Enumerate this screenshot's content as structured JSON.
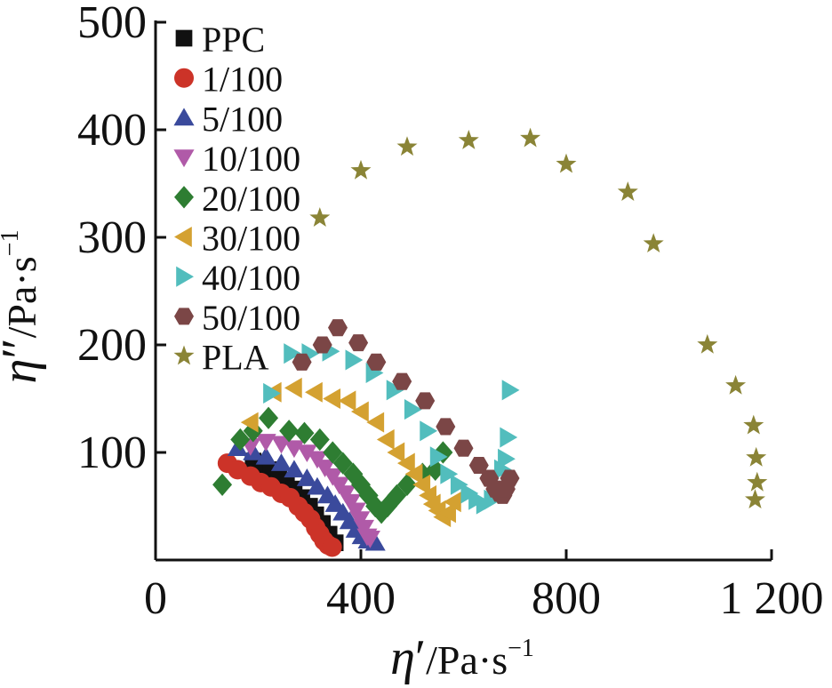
{
  "chart_data": {
    "type": "scatter",
    "xlabel": "η′/Pa·s⁻¹",
    "ylabel": "η″/Pa·s⁻¹",
    "xlabel_parts": {
      "sym": "η",
      "prime": "′",
      "unit": "/Pa·s",
      "exp": "−1"
    },
    "ylabel_parts": {
      "sym": "η",
      "prime": "″",
      "unit": "/Pa·s",
      "exp": "−1"
    },
    "xlim": [
      0,
      1200
    ],
    "ylim": [
      0,
      500
    ],
    "x_ticks": [
      0,
      400,
      800,
      1200
    ],
    "x_tick_labels": [
      "0",
      "400",
      "800",
      "1 200"
    ],
    "y_ticks": [
      100,
      200,
      300,
      400,
      500
    ],
    "y_tick_labels": [
      "100",
      "200",
      "300",
      "400",
      "500"
    ],
    "grid": false,
    "legend_position": "top-left",
    "series": [
      {
        "name": "PPC",
        "marker": "square",
        "color": "#111111",
        "points": [
          [
            190,
            92
          ],
          [
            210,
            88
          ],
          [
            225,
            84
          ],
          [
            240,
            78
          ],
          [
            255,
            72
          ],
          [
            270,
            66
          ],
          [
            285,
            58
          ],
          [
            300,
            50
          ],
          [
            312,
            42
          ],
          [
            325,
            34
          ],
          [
            338,
            24
          ],
          [
            350,
            16
          ]
        ]
      },
      {
        "name": "1/100",
        "marker": "circle",
        "color": "#cc3328",
        "points": [
          [
            140,
            90
          ],
          [
            160,
            84
          ],
          [
            185,
            78
          ],
          [
            205,
            72
          ],
          [
            225,
            68
          ],
          [
            245,
            62
          ],
          [
            262,
            58
          ],
          [
            278,
            50
          ],
          [
            290,
            44
          ],
          [
            302,
            38
          ],
          [
            312,
            30
          ],
          [
            320,
            24
          ],
          [
            328,
            18
          ],
          [
            336,
            14
          ],
          [
            344,
            12
          ]
        ]
      },
      {
        "name": "5/100",
        "marker": "triangle-up",
        "color": "#3a4a9c",
        "points": [
          [
            160,
            104
          ],
          [
            190,
            100
          ],
          [
            215,
            96
          ],
          [
            245,
            90
          ],
          [
            270,
            84
          ],
          [
            295,
            76
          ],
          [
            315,
            68
          ],
          [
            335,
            60
          ],
          [
            350,
            52
          ],
          [
            365,
            44
          ],
          [
            378,
            36
          ],
          [
            390,
            28
          ],
          [
            402,
            22
          ],
          [
            414,
            18
          ],
          [
            428,
            16
          ]
        ]
      },
      {
        "name": "10/100",
        "marker": "triangle-down",
        "color": "#b05aa8",
        "points": [
          [
            185,
            106
          ],
          [
            215,
            110
          ],
          [
            245,
            108
          ],
          [
            270,
            104
          ],
          [
            295,
            100
          ],
          [
            315,
            94
          ],
          [
            330,
            86
          ],
          [
            345,
            78
          ],
          [
            358,
            70
          ],
          [
            370,
            62
          ],
          [
            380,
            54
          ],
          [
            390,
            46
          ],
          [
            398,
            38
          ],
          [
            406,
            30
          ],
          [
            412,
            22
          ],
          [
            418,
            20
          ]
        ]
      },
      {
        "name": "20/100",
        "marker": "diamond",
        "color": "#2e7d32",
        "points": [
          [
            130,
            70
          ],
          [
            165,
            112
          ],
          [
            190,
            120
          ],
          [
            220,
            132
          ],
          [
            260,
            120
          ],
          [
            290,
            118
          ],
          [
            320,
            112
          ],
          [
            345,
            100
          ],
          [
            365,
            90
          ],
          [
            385,
            80
          ],
          [
            400,
            70
          ],
          [
            415,
            60
          ],
          [
            428,
            50
          ],
          [
            440,
            44
          ],
          [
            452,
            50
          ],
          [
            470,
            60
          ],
          [
            490,
            70
          ],
          [
            520,
            80
          ],
          [
            545,
            84
          ],
          [
            560,
            100
          ]
        ]
      },
      {
        "name": "30/100",
        "marker": "triangle-left",
        "color": "#d4a131",
        "points": [
          [
            185,
            128
          ],
          [
            230,
            156
          ],
          [
            270,
            160
          ],
          [
            310,
            156
          ],
          [
            345,
            150
          ],
          [
            375,
            148
          ],
          [
            400,
            138
          ],
          [
            430,
            128
          ],
          [
            450,
            112
          ],
          [
            470,
            100
          ],
          [
            490,
            90
          ],
          [
            505,
            80
          ],
          [
            520,
            70
          ],
          [
            532,
            60
          ],
          [
            540,
            52
          ],
          [
            550,
            46
          ],
          [
            560,
            40
          ],
          [
            570,
            44
          ],
          [
            580,
            54
          ]
        ]
      },
      {
        "name": "40/100",
        "marker": "triangle-right",
        "color": "#52bdbd",
        "points": [
          [
            225,
            155
          ],
          [
            265,
            192
          ],
          [
            300,
            192
          ],
          [
            340,
            194
          ],
          [
            385,
            186
          ],
          [
            425,
            174
          ],
          [
            465,
            158
          ],
          [
            500,
            140
          ],
          [
            530,
            120
          ],
          [
            550,
            96
          ],
          [
            570,
            80
          ],
          [
            590,
            70
          ],
          [
            610,
            62
          ],
          [
            625,
            56
          ],
          [
            640,
            52
          ],
          [
            655,
            56
          ],
          [
            668,
            66
          ],
          [
            675,
            84
          ],
          [
            682,
            94
          ],
          [
            686,
            114
          ],
          [
            690,
            158
          ]
        ]
      },
      {
        "name": "50/100",
        "marker": "hexagon",
        "color": "#7b4646",
        "points": [
          [
            285,
            184
          ],
          [
            325,
            200
          ],
          [
            355,
            216
          ],
          [
            395,
            202
          ],
          [
            430,
            184
          ],
          [
            480,
            166
          ],
          [
            525,
            148
          ],
          [
            565,
            124
          ],
          [
            600,
            104
          ],
          [
            630,
            88
          ],
          [
            650,
            76
          ],
          [
            662,
            66
          ],
          [
            670,
            62
          ],
          [
            676,
            60
          ],
          [
            682,
            66
          ],
          [
            690,
            76
          ]
        ]
      },
      {
        "name": "PLA",
        "marker": "star",
        "color": "#8a8436",
        "points": [
          [
            320,
            318
          ],
          [
            400,
            362
          ],
          [
            490,
            384
          ],
          [
            610,
            390
          ],
          [
            730,
            392
          ],
          [
            800,
            368
          ],
          [
            920,
            342
          ],
          [
            970,
            294
          ],
          [
            1075,
            200
          ],
          [
            1130,
            162
          ],
          [
            1165,
            125
          ],
          [
            1170,
            95
          ],
          [
            1172,
            72
          ],
          [
            1168,
            56
          ]
        ]
      }
    ]
  }
}
